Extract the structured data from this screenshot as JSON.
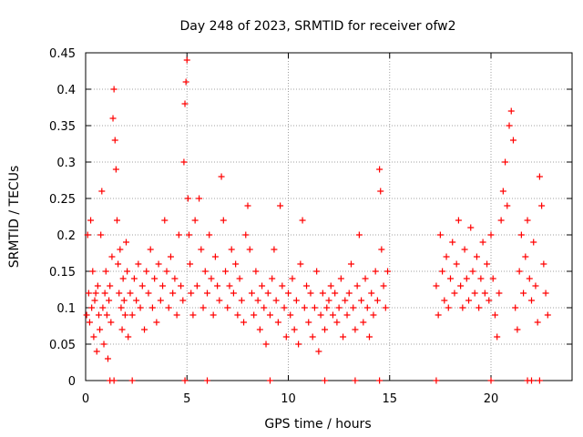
{
  "chart_data": {
    "type": "scatter",
    "title": "Day 248 of 2023, SRMTID for receiver ofw2",
    "xlabel": "GPS time / hours",
    "ylabel": "SRMTID / TECUs",
    "xlim": [
      0,
      24
    ],
    "ylim": [
      0,
      0.45
    ],
    "xticks": [
      0,
      5,
      10,
      15,
      20
    ],
    "xtick_labels": [
      "0",
      "5",
      "10",
      "15",
      "20"
    ],
    "yticks": [
      0,
      0.05,
      0.1,
      0.15,
      0.2,
      0.25,
      0.3,
      0.35,
      0.4,
      0.45
    ],
    "ytick_labels": [
      "0",
      "0.05",
      "0.1",
      "0.15",
      "0.2",
      "0.25",
      "0.3",
      "0.35",
      "0.4",
      "0.45"
    ],
    "grid": true,
    "marker": "+",
    "color": "#ff0000",
    "series": [
      {
        "name": "SRMTID",
        "points": [
          [
            0.05,
            0.09
          ],
          [
            0.1,
            0.2
          ],
          [
            0.15,
            0.12
          ],
          [
            0.2,
            0.08
          ],
          [
            0.25,
            0.22
          ],
          [
            0.3,
            0.1
          ],
          [
            0.35,
            0.15
          ],
          [
            0.4,
            0.06
          ],
          [
            0.45,
            0.11
          ],
          [
            0.5,
            0.12
          ],
          [
            0.55,
            0.04
          ],
          [
            0.6,
            0.13
          ],
          [
            0.65,
            0.09
          ],
          [
            0.7,
            0.07
          ],
          [
            0.75,
            0.2
          ],
          [
            0.8,
            0.26
          ],
          [
            0.85,
            0.1
          ],
          [
            0.9,
            0.05
          ],
          [
            0.95,
            0.12
          ],
          [
            1.0,
            0.15
          ],
          [
            1.05,
            0.09
          ],
          [
            1.1,
            0.03
          ],
          [
            1.15,
            0.11
          ],
          [
            1.2,
            0.13
          ],
          [
            1.25,
            0.08
          ],
          [
            1.3,
            0.17
          ],
          [
            1.35,
            0.36
          ],
          [
            1.4,
            0.4
          ],
          [
            1.45,
            0.33
          ],
          [
            1.5,
            0.29
          ],
          [
            1.55,
            0.22
          ],
          [
            1.6,
            0.16
          ],
          [
            1.65,
            0.12
          ],
          [
            1.7,
            0.18
          ],
          [
            1.75,
            0.1
          ],
          [
            1.8,
            0.07
          ],
          [
            1.85,
            0.14
          ],
          [
            1.9,
            0.11
          ],
          [
            1.95,
            0.09
          ],
          [
            2.0,
            0.19
          ],
          [
            2.05,
            0.15
          ],
          [
            2.1,
            0.06
          ],
          [
            2.2,
            0.12
          ],
          [
            2.3,
            0.09
          ],
          [
            2.4,
            0.14
          ],
          [
            2.5,
            0.11
          ],
          [
            2.6,
            0.16
          ],
          [
            2.7,
            0.1
          ],
          [
            2.8,
            0.13
          ],
          [
            2.9,
            0.07
          ],
          [
            3.0,
            0.15
          ],
          [
            3.1,
            0.12
          ],
          [
            3.2,
            0.18
          ],
          [
            3.3,
            0.1
          ],
          [
            3.4,
            0.14
          ],
          [
            3.5,
            0.08
          ],
          [
            3.6,
            0.16
          ],
          [
            3.7,
            0.11
          ],
          [
            3.8,
            0.13
          ],
          [
            3.9,
            0.22
          ],
          [
            4.0,
            0.15
          ],
          [
            4.1,
            0.1
          ],
          [
            4.2,
            0.17
          ],
          [
            4.3,
            0.12
          ],
          [
            4.4,
            0.14
          ],
          [
            4.5,
            0.09
          ],
          [
            4.6,
            0.2
          ],
          [
            4.7,
            0.13
          ],
          [
            4.8,
            0.11
          ],
          [
            4.85,
            0.3
          ],
          [
            4.9,
            0.38
          ],
          [
            4.95,
            0.41
          ],
          [
            5.0,
            0.44
          ],
          [
            5.05,
            0.25
          ],
          [
            5.1,
            0.2
          ],
          [
            5.15,
            0.16
          ],
          [
            5.2,
            0.12
          ],
          [
            5.3,
            0.09
          ],
          [
            5.4,
            0.22
          ],
          [
            5.5,
            0.13
          ],
          [
            5.6,
            0.25
          ],
          [
            5.7,
            0.18
          ],
          [
            5.8,
            0.1
          ],
          [
            5.9,
            0.15
          ],
          [
            6.0,
            0.12
          ],
          [
            6.1,
            0.2
          ],
          [
            6.2,
            0.14
          ],
          [
            6.3,
            0.09
          ],
          [
            6.4,
            0.17
          ],
          [
            6.5,
            0.13
          ],
          [
            6.6,
            0.11
          ],
          [
            6.7,
            0.28
          ],
          [
            6.8,
            0.22
          ],
          [
            6.9,
            0.15
          ],
          [
            7.0,
            0.1
          ],
          [
            7.1,
            0.13
          ],
          [
            7.2,
            0.18
          ],
          [
            7.3,
            0.12
          ],
          [
            7.4,
            0.16
          ],
          [
            7.5,
            0.09
          ],
          [
            7.6,
            0.14
          ],
          [
            7.7,
            0.11
          ],
          [
            7.8,
            0.08
          ],
          [
            7.9,
            0.2
          ],
          [
            8.0,
            0.24
          ],
          [
            8.1,
            0.18
          ],
          [
            8.2,
            0.12
          ],
          [
            8.3,
            0.09
          ],
          [
            8.4,
            0.15
          ],
          [
            8.5,
            0.11
          ],
          [
            8.6,
            0.07
          ],
          [
            8.7,
            0.13
          ],
          [
            8.8,
            0.1
          ],
          [
            8.9,
            0.05
          ],
          [
            9.0,
            0.12
          ],
          [
            9.1,
            0.09
          ],
          [
            9.2,
            0.14
          ],
          [
            9.3,
            0.18
          ],
          [
            9.4,
            0.11
          ],
          [
            9.5,
            0.08
          ],
          [
            9.6,
            0.24
          ],
          [
            9.7,
            0.13
          ],
          [
            9.8,
            0.1
          ],
          [
            9.9,
            0.06
          ],
          [
            10.0,
            0.12
          ],
          [
            10.1,
            0.09
          ],
          [
            10.2,
            0.14
          ],
          [
            10.3,
            0.07
          ],
          [
            10.4,
            0.11
          ],
          [
            10.5,
            0.05
          ],
          [
            10.6,
            0.16
          ],
          [
            10.7,
            0.22
          ],
          [
            10.8,
            0.1
          ],
          [
            10.9,
            0.13
          ],
          [
            11.0,
            0.08
          ],
          [
            11.1,
            0.12
          ],
          [
            11.2,
            0.06
          ],
          [
            11.3,
            0.1
          ],
          [
            11.4,
            0.15
          ],
          [
            11.5,
            0.04
          ],
          [
            11.6,
            0.09
          ],
          [
            11.7,
            0.12
          ],
          [
            11.8,
            0.07
          ],
          [
            11.9,
            0.1
          ],
          [
            12.0,
            0.11
          ],
          [
            12.1,
            0.13
          ],
          [
            12.2,
            0.09
          ],
          [
            12.3,
            0.12
          ],
          [
            12.4,
            0.08
          ],
          [
            12.5,
            0.1
          ],
          [
            12.6,
            0.14
          ],
          [
            12.7,
            0.06
          ],
          [
            12.8,
            0.11
          ],
          [
            12.9,
            0.09
          ],
          [
            13.0,
            0.12
          ],
          [
            13.1,
            0.16
          ],
          [
            13.2,
            0.1
          ],
          [
            13.3,
            0.07
          ],
          [
            13.4,
            0.13
          ],
          [
            13.5,
            0.2
          ],
          [
            13.6,
            0.11
          ],
          [
            13.7,
            0.08
          ],
          [
            13.8,
            0.14
          ],
          [
            13.9,
            0.1
          ],
          [
            14.0,
            0.06
          ],
          [
            14.1,
            0.12
          ],
          [
            14.2,
            0.09
          ],
          [
            14.3,
            0.15
          ],
          [
            14.4,
            0.11
          ],
          [
            14.5,
            0.29
          ],
          [
            14.55,
            0.26
          ],
          [
            14.6,
            0.18
          ],
          [
            14.7,
            0.13
          ],
          [
            14.8,
            0.1
          ],
          [
            14.9,
            0.15
          ],
          [
            17.3,
            0.13
          ],
          [
            17.4,
            0.09
          ],
          [
            17.5,
            0.2
          ],
          [
            17.6,
            0.15
          ],
          [
            17.7,
            0.11
          ],
          [
            17.8,
            0.17
          ],
          [
            17.9,
            0.1
          ],
          [
            18.0,
            0.14
          ],
          [
            18.1,
            0.19
          ],
          [
            18.2,
            0.12
          ],
          [
            18.3,
            0.16
          ],
          [
            18.4,
            0.22
          ],
          [
            18.5,
            0.13
          ],
          [
            18.6,
            0.1
          ],
          [
            18.7,
            0.18
          ],
          [
            18.8,
            0.14
          ],
          [
            18.9,
            0.11
          ],
          [
            19.0,
            0.21
          ],
          [
            19.1,
            0.15
          ],
          [
            19.2,
            0.12
          ],
          [
            19.3,
            0.17
          ],
          [
            19.4,
            0.1
          ],
          [
            19.5,
            0.14
          ],
          [
            19.6,
            0.19
          ],
          [
            19.7,
            0.12
          ],
          [
            19.8,
            0.16
          ],
          [
            19.9,
            0.11
          ],
          [
            20.0,
            0.2
          ],
          [
            20.1,
            0.14
          ],
          [
            20.2,
            0.09
          ],
          [
            20.3,
            0.06
          ],
          [
            20.4,
            0.12
          ],
          [
            20.5,
            0.22
          ],
          [
            20.6,
            0.26
          ],
          [
            20.7,
            0.3
          ],
          [
            20.8,
            0.24
          ],
          [
            20.9,
            0.35
          ],
          [
            21.0,
            0.37
          ],
          [
            21.1,
            0.33
          ],
          [
            21.2,
            0.1
          ],
          [
            21.3,
            0.07
          ],
          [
            21.4,
            0.15
          ],
          [
            21.5,
            0.2
          ],
          [
            21.6,
            0.12
          ],
          [
            21.7,
            0.17
          ],
          [
            21.8,
            0.22
          ],
          [
            21.9,
            0.14
          ],
          [
            22.0,
            0.11
          ],
          [
            22.1,
            0.19
          ],
          [
            22.2,
            0.13
          ],
          [
            22.3,
            0.08
          ],
          [
            22.4,
            0.28
          ],
          [
            22.5,
            0.24
          ],
          [
            22.6,
            0.16
          ],
          [
            22.7,
            0.12
          ],
          [
            22.8,
            0.09
          ],
          [
            1.2,
            0.0
          ],
          [
            1.4,
            0.0
          ],
          [
            2.3,
            0.0
          ],
          [
            4.9,
            0.0
          ],
          [
            6.0,
            0.0
          ],
          [
            9.1,
            0.0
          ],
          [
            11.8,
            0.0
          ],
          [
            13.3,
            0.0
          ],
          [
            14.5,
            0.0
          ],
          [
            17.3,
            0.0
          ],
          [
            20.0,
            0.0
          ],
          [
            21.8,
            0.0
          ],
          [
            22.0,
            0.0
          ],
          [
            22.4,
            0.0
          ]
        ]
      }
    ]
  }
}
